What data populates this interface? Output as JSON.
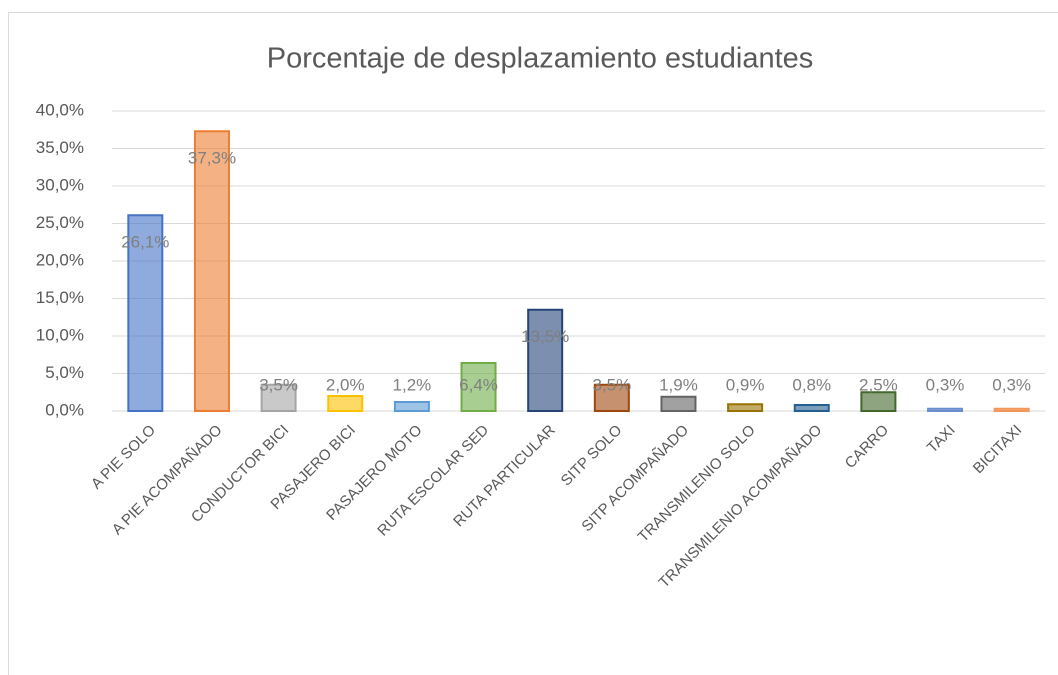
{
  "chart_data": {
    "type": "bar",
    "title": "Porcentaje de desplazamiento estudiantes",
    "categories": [
      "A PIE SOLO",
      "A PIE ACOMPAÑADO",
      "CONDUCTOR BICI",
      "PASAJERO BICI",
      "PASAJERO MOTO",
      "RUTA ESCOLAR SED",
      "RUTA PARTICULAR",
      "SITP SOLO",
      "SITP ACOMPAÑADO",
      "TRANSMILENIO SOLO",
      "TRANSMILENIO ACOMPAÑADO",
      "CARRO",
      "TAXI",
      "BICITAXI"
    ],
    "values": [
      26.1,
      37.3,
      3.5,
      2.0,
      1.2,
      6.4,
      13.5,
      3.5,
      1.9,
      0.9,
      0.8,
      2.5,
      0.3,
      0.3
    ],
    "value_labels": [
      "26,1%",
      "37,3%",
      "3,5%",
      "2,0%",
      "1,2%",
      "6,4%",
      "13,5%",
      "3,5%",
      "1,9%",
      "0,9%",
      "0,8%",
      "2,5%",
      "0,3%",
      "0,3%"
    ],
    "colors": [
      "#4472c4",
      "#ed7d31",
      "#a5a5a5",
      "#ffc000",
      "#5b9bd5",
      "#70ad47",
      "#264478",
      "#9e480e",
      "#636363",
      "#997300",
      "#255e91",
      "#43682b",
      "#698ed0",
      "#f1975a"
    ],
    "ylim": [
      0,
      40
    ],
    "yticks": [
      {
        "value": 0,
        "label": "0,0%"
      },
      {
        "value": 5,
        "label": "5,0%"
      },
      {
        "value": 10,
        "label": "10,0%"
      },
      {
        "value": 15,
        "label": "15,0%"
      },
      {
        "value": 20,
        "label": "20,0%"
      },
      {
        "value": 25,
        "label": "25,0%"
      },
      {
        "value": 30,
        "label": "30,0%"
      },
      {
        "value": 35,
        "label": "35,0%"
      },
      {
        "value": 40,
        "label": "40,0%"
      }
    ],
    "grid": true
  }
}
